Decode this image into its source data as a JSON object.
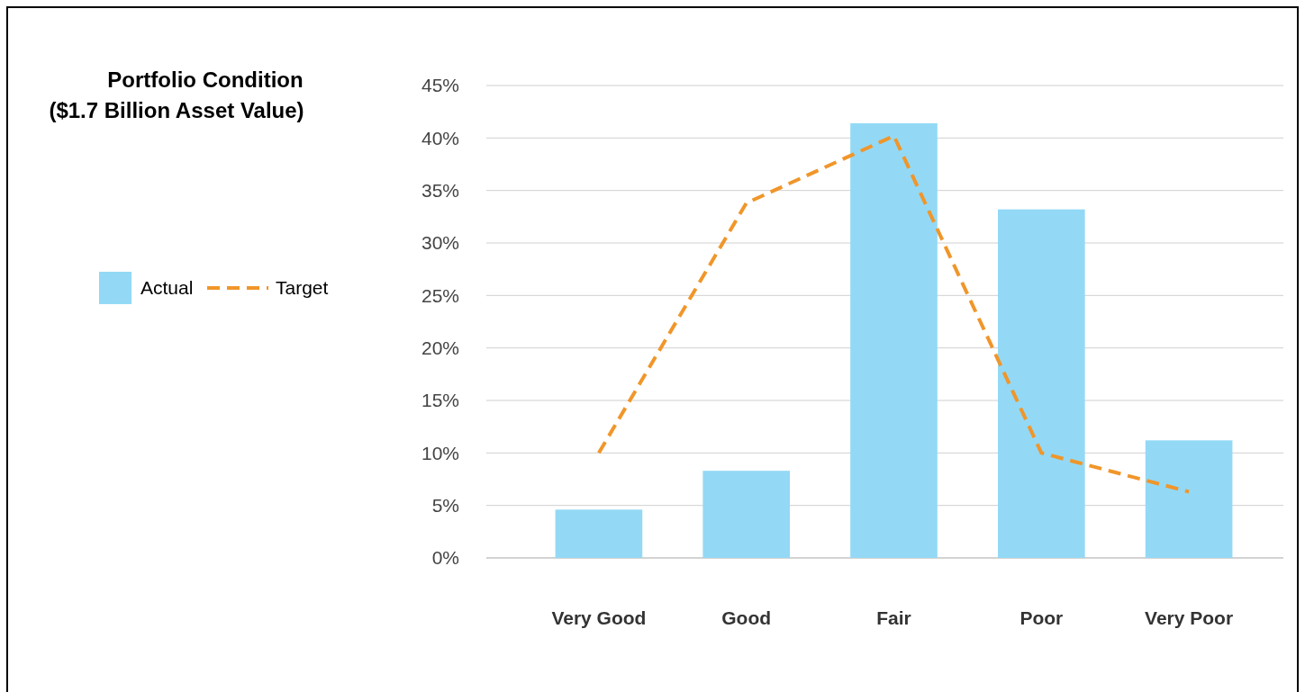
{
  "chart_data": {
    "type": "bar",
    "title": "Portfolio Condition\n($1.7 Billion Asset Value)",
    "categories": [
      "Very Good",
      "Good",
      "Fair",
      "Poor",
      "Very Poor"
    ],
    "series": [
      {
        "name": "Actual",
        "color": "#93d9f6",
        "values": [
          4.6,
          8.3,
          41.4,
          33.2,
          11.2
        ]
      },
      {
        "name": "Target",
        "type": "line",
        "color": "#f0962a",
        "line_style": "dashed",
        "marker": "none",
        "values": [
          10,
          33.8,
          40.2,
          10,
          6.3
        ]
      }
    ],
    "ylim": [
      0,
      45
    ],
    "yticks": [
      {
        "value": 0,
        "label": "0%"
      },
      {
        "value": 5,
        "label": "5%"
      },
      {
        "value": 10,
        "label": "10%"
      },
      {
        "value": 15,
        "label": "15%"
      },
      {
        "value": 20,
        "label": "20%"
      },
      {
        "value": 25,
        "label": "25%"
      },
      {
        "value": 30,
        "label": "30%"
      },
      {
        "value": 35,
        "label": "35%"
      },
      {
        "value": 40,
        "label": "40%"
      },
      {
        "value": 45,
        "label": "45%"
      }
    ],
    "grid": "y",
    "legend": "left"
  }
}
